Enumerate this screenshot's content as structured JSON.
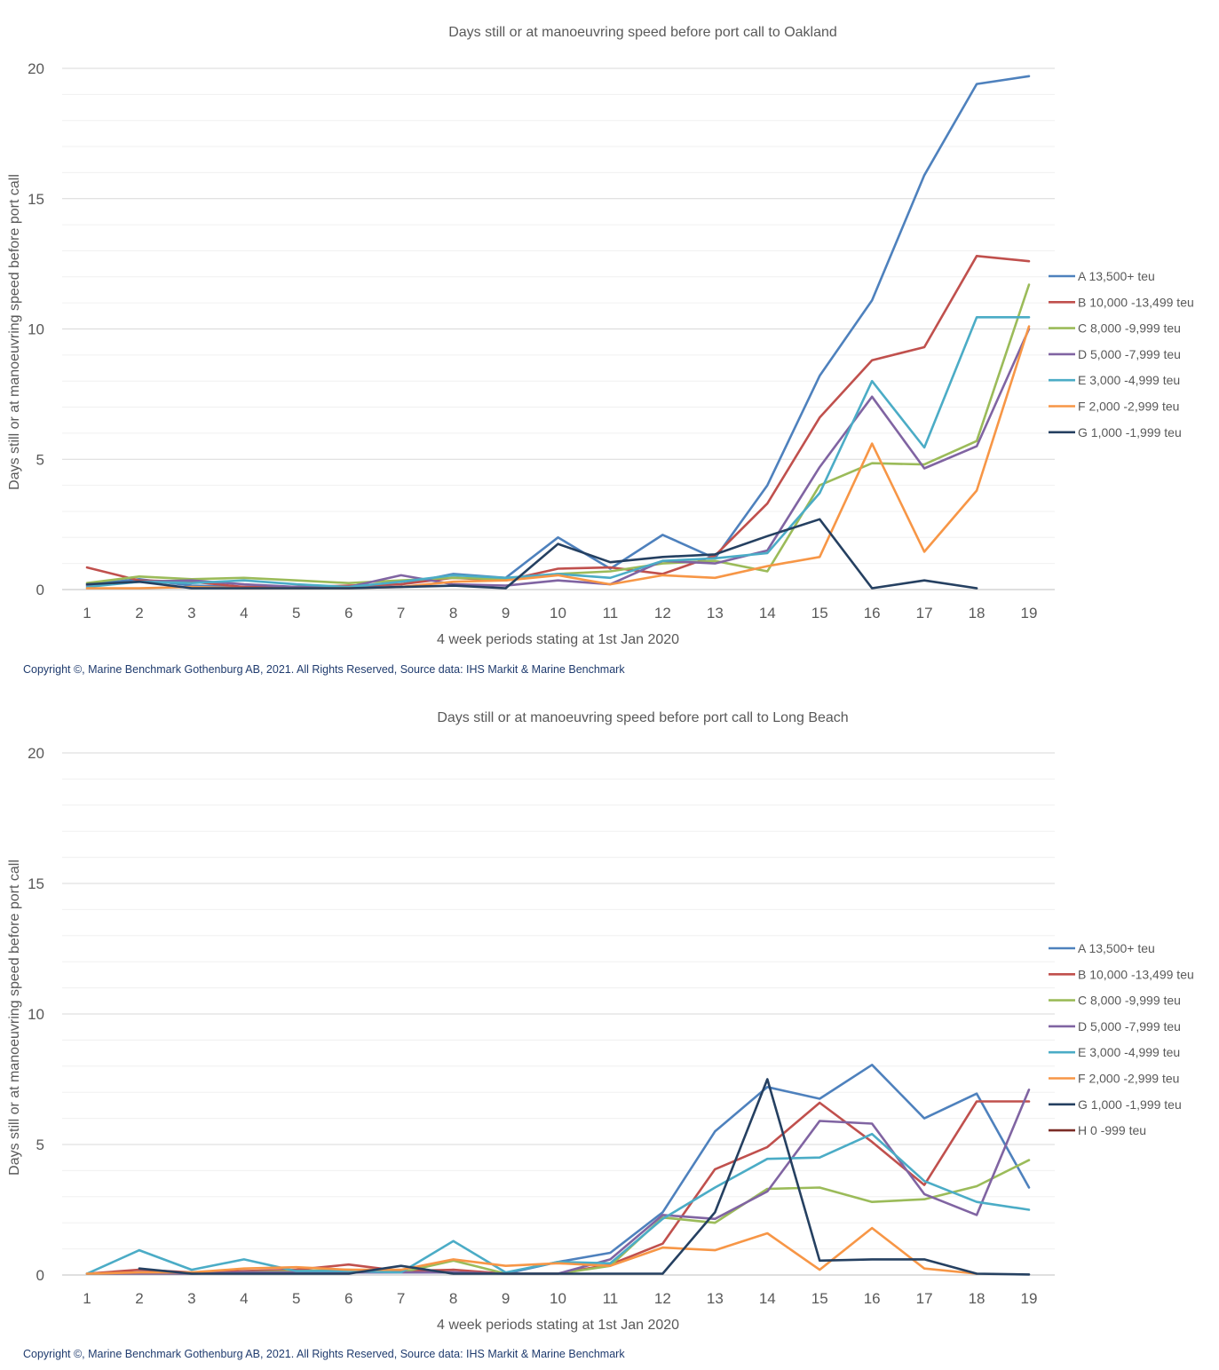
{
  "chart_data": [
    {
      "type": "line",
      "title": "Days still or at manoeuvring speed before port call to Oakland",
      "xlabel": "4 week periods stating at 1st Jan 2020",
      "ylabel": "Days still or at manoeuvring speed before port call",
      "x": [
        1,
        2,
        3,
        4,
        5,
        6,
        7,
        8,
        9,
        10,
        11,
        12,
        13,
        14,
        15,
        16,
        17,
        18,
        19
      ],
      "ylim": [
        0,
        20
      ],
      "yticks": [
        0,
        5,
        10,
        15,
        20
      ],
      "grid": true,
      "legend_position": "right",
      "series": [
        {
          "name": "A 13,500+ teu",
          "color": "#4e81bd",
          "values": [
            0.2,
            0.4,
            0.15,
            0.1,
            0.1,
            0.1,
            0.2,
            0.6,
            0.45,
            2.0,
            0.8,
            2.1,
            1.2,
            4.0,
            8.2,
            11.1,
            15.9,
            19.4,
            19.7
          ]
        },
        {
          "name": "B 10,000 -13,499 teu",
          "color": "#c0504d",
          "values": [
            0.85,
            0.35,
            0.3,
            0.1,
            0.1,
            0.15,
            0.2,
            0.45,
            0.35,
            0.8,
            0.85,
            0.6,
            1.3,
            3.3,
            6.6,
            8.8,
            9.3,
            12.8,
            12.6
          ]
        },
        {
          "name": "C 8,000 -9,999 teu",
          "color": "#9bbb59",
          "values": [
            0.25,
            0.5,
            0.4,
            0.45,
            0.35,
            0.25,
            0.35,
            0.45,
            0.4,
            0.6,
            0.7,
            1.0,
            1.1,
            0.7,
            4.0,
            4.85,
            4.8,
            5.7,
            11.7
          ]
        },
        {
          "name": "D 5,000 -7,999 teu",
          "color": "#8064a2",
          "values": [
            0.15,
            0.3,
            0.35,
            0.2,
            0.1,
            0.1,
            0.55,
            0.2,
            0.15,
            0.35,
            0.2,
            1.1,
            1.0,
            1.5,
            4.7,
            7.4,
            4.65,
            5.5,
            10.0
          ]
        },
        {
          "name": "E 3,000 -4,999 teu",
          "color": "#4bacc6",
          "values": [
            0.1,
            0.3,
            0.25,
            0.35,
            0.2,
            0.1,
            0.3,
            0.55,
            0.45,
            0.6,
            0.45,
            1.1,
            1.2,
            1.4,
            3.7,
            8.0,
            5.45,
            10.45,
            10.45
          ]
        },
        {
          "name": "F 2,000 -2,999 teu",
          "color": "#f79646",
          "values": [
            0.05,
            0.05,
            0.1,
            0.05,
            0.05,
            0.05,
            0.1,
            0.3,
            0.35,
            0.55,
            0.2,
            0.55,
            0.45,
            0.9,
            1.25,
            5.6,
            1.45,
            3.8,
            10.1
          ]
        },
        {
          "name": "G 1,000 -1,999 teu",
          "color": "#254061",
          "values": [
            0.2,
            0.3,
            0.05,
            0.05,
            0.05,
            0.05,
            0.1,
            0.15,
            0.05,
            1.75,
            1.05,
            1.25,
            1.35,
            2.05,
            2.7,
            0.05,
            0.35,
            0.05,
            null
          ]
        }
      ]
    },
    {
      "type": "line",
      "title": "Days still or at manoeuvring speed before port call to Long Beach",
      "xlabel": "4 week periods stating at 1st Jan 2020",
      "ylabel": "Days still or at manoeuvring speed before port call",
      "x": [
        1,
        2,
        3,
        4,
        5,
        6,
        7,
        8,
        9,
        10,
        11,
        12,
        13,
        14,
        15,
        16,
        17,
        18,
        19
      ],
      "ylim": [
        0,
        20
      ],
      "yticks": [
        0,
        5,
        10,
        15,
        20
      ],
      "grid": true,
      "legend_position": "right",
      "series": [
        {
          "name": "A 13,500+ teu",
          "color": "#4e81bd",
          "values": [
            0.05,
            0.1,
            0.05,
            0.1,
            0.1,
            0.1,
            0.1,
            0.1,
            0.05,
            0.5,
            0.85,
            2.4,
            5.5,
            7.2,
            6.75,
            8.05,
            6.0,
            6.95,
            3.35
          ]
        },
        {
          "name": "B 10,000 -13,499 teu",
          "color": "#c0504d",
          "values": [
            0.05,
            0.2,
            0.1,
            0.15,
            0.2,
            0.4,
            0.15,
            0.2,
            0.05,
            0.05,
            0.4,
            1.2,
            4.05,
            4.9,
            6.6,
            5.1,
            3.45,
            6.65,
            6.65
          ]
        },
        {
          "name": "C 8,000 -9,999 teu",
          "color": "#9bbb59",
          "values": [
            0.05,
            0.05,
            0.05,
            0.1,
            0.15,
            0.2,
            0.1,
            0.55,
            0.05,
            0.05,
            0.35,
            2.2,
            2.0,
            3.3,
            3.35,
            2.8,
            2.9,
            3.4,
            4.4
          ]
        },
        {
          "name": "D 5,000 -7,999 teu",
          "color": "#8064a2",
          "values": [
            0.05,
            0.05,
            0.05,
            0.1,
            0.1,
            0.1,
            0.1,
            0.1,
            0.05,
            0.05,
            0.6,
            2.3,
            2.15,
            3.2,
            5.9,
            5.8,
            3.1,
            2.3,
            7.1
          ]
        },
        {
          "name": "E 3,000 -4,999 teu",
          "color": "#4bacc6",
          "values": [
            0.05,
            0.95,
            0.2,
            0.6,
            0.15,
            0.15,
            0.1,
            1.3,
            0.1,
            0.5,
            0.45,
            2.15,
            3.35,
            4.45,
            4.5,
            5.4,
            3.6,
            2.8,
            2.5
          ]
        },
        {
          "name": "F 2,000 -2,999 teu",
          "color": "#f79646",
          "values": [
            0.05,
            0.1,
            0.1,
            0.25,
            0.3,
            0.2,
            0.2,
            0.6,
            0.35,
            0.45,
            0.35,
            1.05,
            0.95,
            1.6,
            0.2,
            1.8,
            0.25,
            0.05,
            null
          ]
        },
        {
          "name": "G 1,000 -1,999 teu",
          "color": "#254061",
          "values": [
            null,
            0.25,
            0.05,
            0.05,
            0.05,
            0.05,
            0.35,
            0.05,
            0.05,
            0.05,
            0.05,
            0.05,
            2.4,
            7.5,
            0.55,
            0.6,
            0.6,
            0.05,
            0.02
          ]
        },
        {
          "name": "H 0 -999 teu",
          "color": "#7b2c26",
          "values": [
            null,
            null,
            null,
            null,
            null,
            null,
            null,
            null,
            null,
            null,
            null,
            null,
            null,
            null,
            null,
            null,
            null,
            null,
            null
          ]
        }
      ]
    }
  ],
  "footer": {
    "copyright_top": "Copyright ©, Marine Benchmark Gothenburg AB, 2021. All Rights Reserved, Source data: IHS Markit & Marine Benchmark",
    "copyright_bottom": "Copyright ©, Marine Benchmark Gothenburg AB, 2021. All Rights Reserved, Source data: IHS Markit & Marine Benchmark"
  }
}
